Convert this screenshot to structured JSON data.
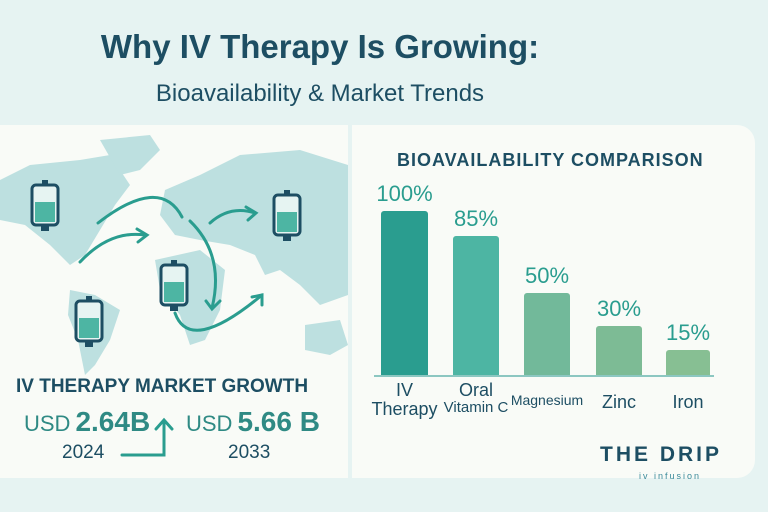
{
  "header": {
    "title": "Why IV Therapy Is Growing:",
    "subtitle": "Bioavailability & Market Trends"
  },
  "market": {
    "title": "IV THERAPY MARKET GROWTH",
    "start": {
      "currency": "USD",
      "value": "2.64B",
      "year": "2024"
    },
    "end": {
      "currency": "USD",
      "value": "5.66 B",
      "year": "2033"
    },
    "icons": [
      "world-map",
      "iv-bag-icon",
      "arrow-icon"
    ]
  },
  "chart_data": {
    "type": "bar",
    "title": "BIOAVAILABILITY COMPARISON",
    "categories": [
      "IV Therapy",
      "Oral Vitamin C",
      "Magnesium",
      "Zinc",
      "Iron"
    ],
    "category_lines": [
      [
        "IV",
        "Therapy"
      ],
      [
        "Oral",
        "Vitamin C"
      ],
      [
        "Magnesium"
      ],
      [
        "Zinc"
      ],
      [
        "Iron"
      ]
    ],
    "values": [
      100,
      85,
      50,
      30,
      15
    ],
    "data_labels": [
      "100%",
      "85%",
      "50%",
      "30%",
      "15%"
    ],
    "colors": [
      "#2a9d8f",
      "#4db5a3",
      "#72b99a",
      "#7dbb95",
      "#87bf93"
    ],
    "ylim": [
      0,
      100
    ],
    "grid": false
  },
  "brand": {
    "name": "THE DRIP",
    "tagline": "iv infusion"
  },
  "colors": {
    "primary": "#1d4e63",
    "accent": "#2a9d8f",
    "map": "#bde0e0"
  }
}
